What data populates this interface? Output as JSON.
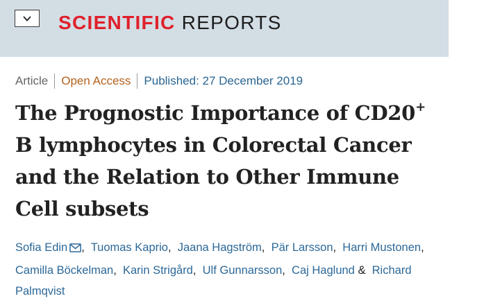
{
  "header": {
    "menu_icon": "chevron-down-icon",
    "brand_accent": "SCIENTIFIC",
    "brand_rest": " REPORTS",
    "colors": {
      "band": "#d3dde4",
      "accent": "#e0202b"
    }
  },
  "meta": {
    "type": "Article",
    "access": "Open Access",
    "published": "Published: 27 December 2019",
    "colors": {
      "access": "#b4611c",
      "published": "#2a6592"
    }
  },
  "title": {
    "part1": "The Prognostic Importance of CD20",
    "sup": "+",
    "part2": " B lymphocytes in Colorectal Cancer and the Relation to Other Immune Cell subsets"
  },
  "authors": {
    "link_color": "#2c6898",
    "corresponding_icon": "mail-icon",
    "list": [
      "Sofia Edin",
      "Tuomas Kaprio",
      "Jaana Hagström",
      "Pär Larsson",
      "Harri Mustonen",
      "Camilla Böckelman",
      "Karin Strigård",
      "Ulf Gunnarsson",
      "Caj Haglund",
      "Richard Palmqvist"
    ],
    "separator": ", ",
    "last_separator": " & "
  }
}
